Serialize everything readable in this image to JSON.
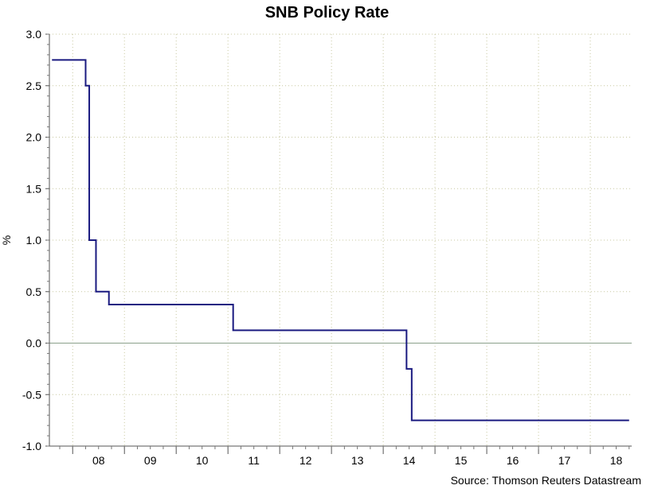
{
  "chart_data": {
    "type": "line",
    "title": "SNB Policy Rate",
    "ylabel": "%",
    "xlabel": "",
    "source": "Source: Thomson Reuters Datastream",
    "ylim": [
      -1.0,
      3.0
    ],
    "xlim": [
      2007.55,
      2018.8
    ],
    "yticks": [
      3.0,
      2.5,
      2.0,
      1.5,
      1.0,
      0.5,
      0.0,
      -0.5,
      -1.0
    ],
    "ytick_labels": [
      "3.0",
      "2.5",
      "2.0",
      "1.5",
      "1.0",
      "0.5",
      "0.0",
      "-0.5",
      "-1.0"
    ],
    "xtick_labels": [
      "08",
      "09",
      "10",
      "11",
      "12",
      "13",
      "14",
      "15",
      "16",
      "17",
      "18"
    ],
    "grid": true,
    "line_color": "#1a1a80",
    "series": [
      {
        "name": "SNB Policy Rate",
        "step": true,
        "x": [
          2007.6,
          2008.25,
          2008.32,
          2008.45,
          2008.7,
          2011.1,
          2014.45,
          2014.55,
          2018.75
        ],
        "y": [
          2.75,
          2.5,
          1.0,
          0.5,
          0.375,
          0.125,
          -0.25,
          -0.75,
          -0.75
        ]
      }
    ]
  }
}
